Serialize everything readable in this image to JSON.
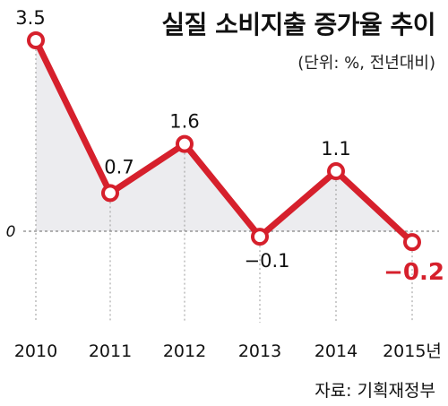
{
  "chart_data": {
    "type": "line",
    "title": "실질 소비지출 증가율 추이",
    "subtitle": "(단위: %, 전년대비)",
    "categories": [
      "2010",
      "2011",
      "2012",
      "2013",
      "2014",
      "2015년"
    ],
    "series": [
      {
        "values": [
          3.5,
          0.7,
          1.6,
          -0.1,
          1.1,
          -0.2
        ]
      }
    ],
    "data_labels": [
      "3.5",
      "0.7",
      "1.6",
      "−0.1",
      "1.1",
      "−0.2"
    ],
    "highlight_index": 5,
    "zero_label": "0",
    "source": "자료: 기획재정부",
    "colors": {
      "line": "#d6202c",
      "highlight_label": "#d6202c",
      "area": "#ececef",
      "text": "#111111"
    },
    "grid": false,
    "ylim": [
      -1.2,
      3.5
    ]
  }
}
